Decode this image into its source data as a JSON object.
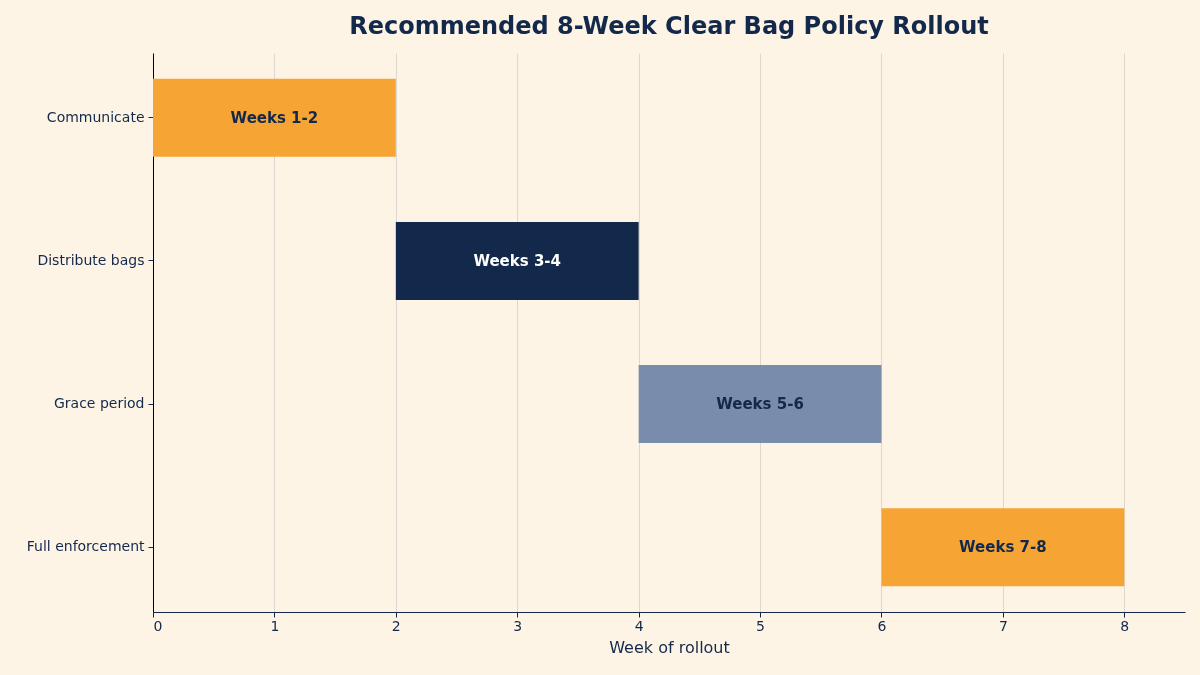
{
  "chart_data": {
    "type": "bar",
    "orientation": "horizontal",
    "title": "Recommended 8-Week Clear Bag Policy Rollout",
    "xlabel": "Week of rollout",
    "categories": [
      "Communicate",
      "Distribute bags",
      "Grace period",
      "Full enforcement"
    ],
    "base": [
      0,
      2,
      4,
      6
    ],
    "values": [
      2,
      2,
      2,
      2
    ],
    "colors": [
      "#f6a535",
      "#13294b",
      "#7a8cab",
      "#f6a535"
    ],
    "value_labels": [
      "Weeks 1-2",
      "Weeks 3-4",
      "Weeks 5-6",
      "Weeks 7-8"
    ],
    "xlim": [
      0,
      8.5
    ],
    "xticks": [
      0,
      1,
      2,
      3,
      4,
      5,
      6,
      7,
      8
    ],
    "grid": "x"
  }
}
